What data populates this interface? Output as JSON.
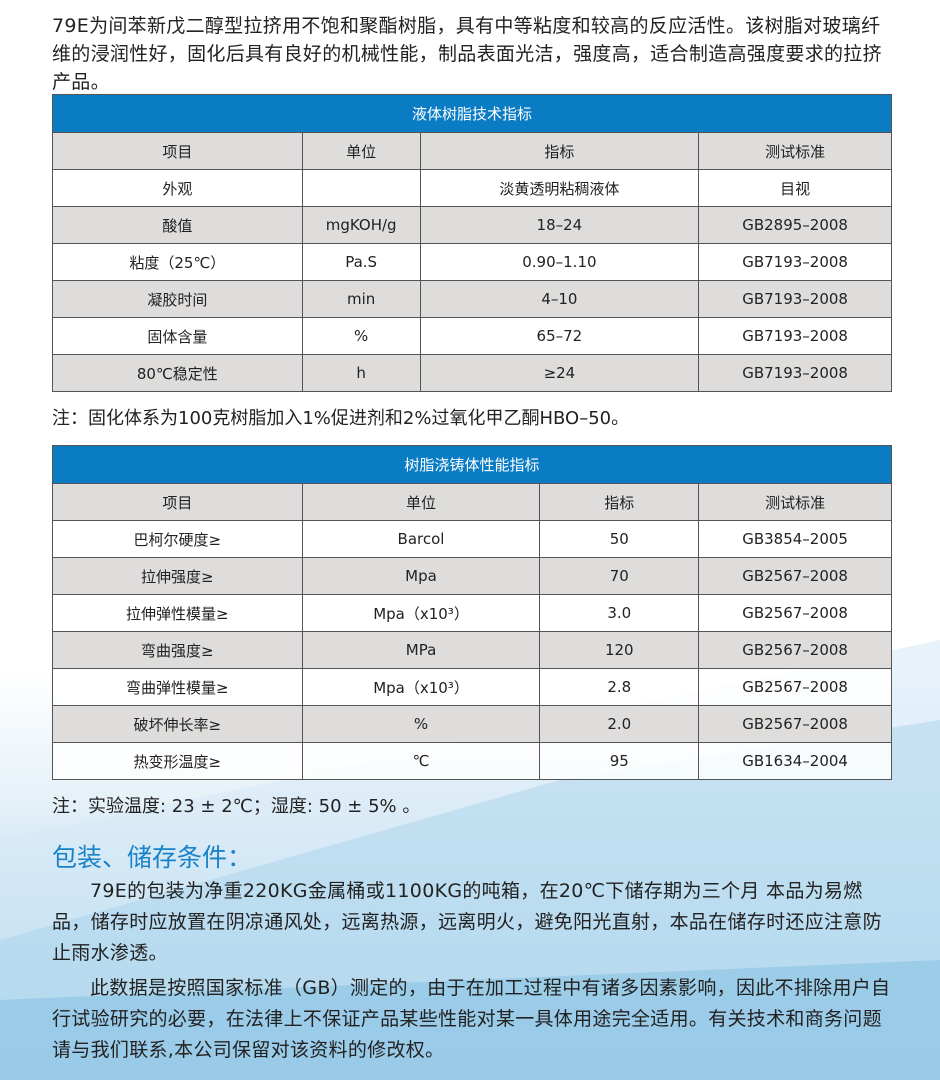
{
  "intro": "79E为间苯新戊二醇型拉挤用不饱和聚酯树脂，具有中等粘度和较高的反应活性。该树脂对玻璃纤维的浸润性好，固化后具有良好的机械性能，制品表面光洁，强度高，适合制造高强度要求的拉挤产品。",
  "table1": {
    "title": "液体树脂技术指标",
    "headers": [
      "项目",
      "单位",
      "指标",
      "测试标准"
    ],
    "rows": [
      [
        "外观",
        "",
        "淡黄透明粘稠液体",
        "目视"
      ],
      [
        "酸值",
        "mgKOH/g",
        "18–24",
        "GB2895–2008"
      ],
      [
        "粘度（25℃）",
        "Pa.S",
        "0.90–1.10",
        "GB7193–2008"
      ],
      [
        "凝胶时间",
        "min",
        "4–10",
        "GB7193–2008"
      ],
      [
        "固体含量",
        "%",
        "65–72",
        "GB7193–2008"
      ],
      [
        "80℃稳定性",
        "h",
        "≥24",
        "GB7193–2008"
      ]
    ],
    "note": "注：固化体系为100克树脂加入1%促进剂和2%过氧化甲乙酮HBO–50。"
  },
  "table2": {
    "title": "树脂浇铸体性能指标",
    "headers": [
      "项目",
      "单位",
      "指标",
      "测试标准"
    ],
    "rows": [
      [
        "巴柯尔硬度≥",
        "Barcol",
        "50",
        "GB3854–2005"
      ],
      [
        "拉伸强度≥",
        "Mpa",
        "70",
        "GB2567–2008"
      ],
      [
        "拉伸弹性模量≥",
        "Mpa（x10³）",
        "3.0",
        "GB2567–2008"
      ],
      [
        "弯曲强度≥",
        "MPa",
        "120",
        "GB2567–2008"
      ],
      [
        "弯曲弹性模量≥",
        "Mpa（x10³）",
        "2.8",
        "GB2567–2008"
      ],
      [
        "破坏伸长率≥",
        "%",
        "2.0",
        "GB2567–2008"
      ],
      [
        "热变形温度≥",
        "℃",
        "95",
        "GB1634–2004"
      ]
    ],
    "note": "注：实验温度: 23 ± 2℃；湿度: 50 ± 5% 。"
  },
  "section": {
    "title": "包装、储存条件：",
    "p1": "79E的包装为净重220KG金属桶或1100KG的吨箱，在20℃下储存期为三个月 本品为易燃品，储存时应放置在阴凉通风处，远离热源，远离明火，避免阳光直射，本品在储存时还应注意防止雨水渗透。",
    "p2": "此数据是按照国家标准（GB）测定的，由于在加工过程中有诸多因素影响，因此不排除用户自行试验研究的必要，在法律上不保证产品某些性能对某一具体用途完全适用。有关技术和商务问题请与我们联系,本公司保留对该资料的修改权。"
  },
  "colors": {
    "header_blue": "#0a7cc4",
    "section_title": "#1a82c8",
    "row_gray": "#dedddc"
  }
}
